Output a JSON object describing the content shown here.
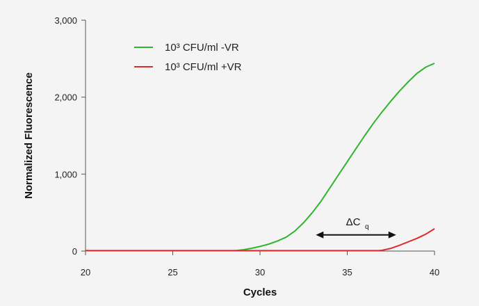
{
  "chart_data": {
    "type": "line",
    "xlabel": "Cycles",
    "ylabel": "Normalized Fluorescence",
    "xlim": [
      20,
      40
    ],
    "ylim": [
      0,
      3000
    ],
    "x_ticks": [
      "20",
      "25",
      "30",
      "35",
      "40"
    ],
    "y_ticks": [
      "0",
      "1,000",
      "2,000",
      "3,000"
    ],
    "grid": false,
    "legend_position": "top-left",
    "series": [
      {
        "name": "10³ CFU/ml -VR",
        "color": "#2db52d",
        "x": [
          20,
          28.6,
          29,
          29.5,
          30,
          30.5,
          31,
          31.5,
          32,
          32.5,
          33,
          33.5,
          34,
          34.5,
          35,
          35.5,
          36,
          36.5,
          37,
          37.5,
          38,
          38.5,
          39,
          39.5,
          40
        ],
        "values": [
          5,
          5,
          15,
          35,
          60,
          90,
          130,
          180,
          260,
          370,
          500,
          650,
          820,
          990,
          1160,
          1330,
          1500,
          1660,
          1810,
          1950,
          2080,
          2200,
          2310,
          2390,
          2440
        ]
      },
      {
        "name": "10³ CFU/ml +VR",
        "color": "#e02b2b",
        "x": [
          20,
          36.8,
          37,
          37.5,
          38,
          38.5,
          39,
          39.5,
          40
        ],
        "values": [
          5,
          5,
          10,
          35,
          75,
          120,
          165,
          220,
          290
        ]
      }
    ],
    "annotation": {
      "label": "ΔC",
      "subscript": "q",
      "x_range": [
        33.2,
        37.8
      ],
      "y": 210
    }
  }
}
